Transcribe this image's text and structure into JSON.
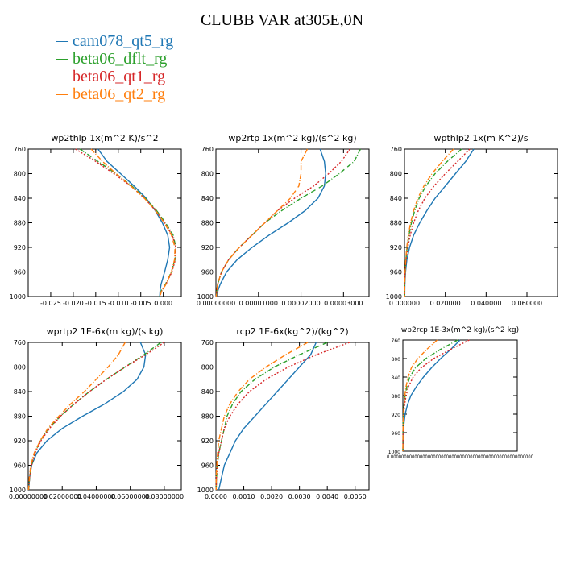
{
  "title": "CLUBB VAR at305E,0N",
  "legend": [
    {
      "label": "cam078_qt5_rg",
      "color": "#1f77b4"
    },
    {
      "label": "beta06_dflt_rg",
      "color": "#2ca02c"
    },
    {
      "label": "beta06_qt1_rg",
      "color": "#d62728"
    },
    {
      "label": "beta06_qt2_rg",
      "color": "#ff7f0e"
    }
  ],
  "chart_data": [
    {
      "type": "line",
      "title": "wp2thlp  1x(m^2 K)/s^2",
      "xlim": [
        -0.03,
        0.004
      ],
      "ylim": [
        760,
        1000
      ],
      "y_inverted": true,
      "yticks": [
        760,
        800,
        840,
        880,
        920,
        960,
        1000
      ],
      "xticks": [
        -0.025,
        -0.02,
        -0.015,
        -0.01,
        -0.005,
        0.0
      ],
      "xtick_labels": [
        "-0.025",
        "-0.020",
        "-0.015",
        "-0.010",
        "-0.005",
        "0.000"
      ],
      "ytick_labels": [
        "760",
        "800",
        "840",
        "880",
        "920",
        "960",
        "1000"
      ],
      "series": [
        {
          "name": "cam078_qt5_rg",
          "y": [
            760,
            780,
            800,
            820,
            840,
            860,
            880,
            900,
            920,
            940,
            960,
            980,
            990,
            1000
          ],
          "x": [
            -0.0145,
            -0.0125,
            -0.0095,
            -0.0065,
            -0.0038,
            -0.0018,
            -0.0002,
            0.001,
            0.0014,
            0.001,
            0.0003,
            -0.0005,
            -0.0007,
            -0.0008
          ]
        },
        {
          "name": "beta06_dflt_rg",
          "y": [
            760,
            780,
            800,
            820,
            840,
            860,
            880,
            900,
            920,
            940,
            960,
            980,
            990,
            1000
          ],
          "x": [
            -0.0185,
            -0.0145,
            -0.0105,
            -0.007,
            -0.004,
            -0.0015,
            0.0005,
            0.0022,
            0.0028,
            0.0026,
            0.0018,
            0.0005,
            -0.0004,
            -0.0008
          ]
        },
        {
          "name": "beta06_qt1_rg",
          "y": [
            760,
            780,
            800,
            820,
            840,
            860,
            880,
            900,
            920,
            940,
            960,
            980,
            990,
            1000
          ],
          "x": [
            -0.0195,
            -0.015,
            -0.011,
            -0.0072,
            -0.0042,
            -0.0017,
            0.0003,
            0.002,
            0.0028,
            0.0027,
            0.0019,
            0.0006,
            -0.0003,
            -0.0008
          ]
        },
        {
          "name": "beta06_qt2_rg",
          "y": [
            760,
            780,
            800,
            820,
            840,
            860,
            880,
            900,
            920,
            940,
            960,
            980,
            990,
            1000
          ],
          "x": [
            -0.016,
            -0.0135,
            -0.0105,
            -0.0072,
            -0.0042,
            -0.0017,
            0.0002,
            0.0018,
            0.0026,
            0.0025,
            0.0018,
            0.0006,
            -0.0003,
            -0.0008
          ]
        }
      ]
    },
    {
      "type": "line",
      "title": "wp2rtp  1x(m^2 kg)/(s^2 kg)",
      "xlim": [
        0,
        3.6e-05
      ],
      "ylim": [
        760,
        1000
      ],
      "y_inverted": true,
      "yticks": [
        760,
        800,
        840,
        880,
        920,
        960,
        1000
      ],
      "xticks": [
        0,
        1e-05,
        2e-05,
        3e-05
      ],
      "xtick_labels": [
        "0.00000000",
        "0.00001000",
        "0.00002000",
        "0.00003000"
      ],
      "ytick_labels": [
        "760",
        "800",
        "840",
        "880",
        "920",
        "960",
        "1000"
      ],
      "series": [
        {
          "name": "cam078_qt5_rg",
          "y": [
            760,
            780,
            800,
            820,
            840,
            860,
            880,
            900,
            920,
            940,
            960,
            980,
            990,
            1000
          ],
          "x": [
            2.45e-05,
            2.55e-05,
            2.58e-05,
            2.55e-05,
            2.4e-05,
            2.1e-05,
            1.7e-05,
            1.25e-05,
            8.5e-06,
            5e-06,
            2.5e-06,
            1e-06,
            5e-07,
            2e-07
          ]
        },
        {
          "name": "beta06_dflt_rg",
          "y": [
            760,
            780,
            800,
            820,
            840,
            860,
            880,
            900,
            920,
            940,
            960,
            980,
            990,
            1000
          ],
          "x": [
            3.4e-05,
            3.25e-05,
            2.9e-05,
            2.5e-05,
            2e-05,
            1.55e-05,
            1.15e-05,
            8.5e-06,
            5.5e-06,
            3e-06,
            1.3e-06,
            4e-07,
            2e-07,
            1e-07
          ]
        },
        {
          "name": "beta06_qt1_rg",
          "y": [
            760,
            780,
            800,
            820,
            840,
            860,
            880,
            900,
            920,
            940,
            960,
            980,
            990,
            1000
          ],
          "x": [
            3.15e-05,
            2.95e-05,
            2.65e-05,
            2.3e-05,
            1.85e-05,
            1.45e-05,
            1.15e-05,
            8.5e-06,
            5.5e-06,
            3e-06,
            1.3e-06,
            4e-07,
            2e-07,
            1e-07
          ]
        },
        {
          "name": "beta06_qt2_rg",
          "y": [
            760,
            780,
            800,
            820,
            840,
            860,
            880,
            900,
            920,
            940,
            960,
            980,
            990,
            1000
          ],
          "x": [
            2.15e-05,
            2e-05,
            2e-05,
            1.95e-05,
            1.75e-05,
            1.45e-05,
            1.15e-05,
            8.5e-06,
            5.5e-06,
            3e-06,
            1.3e-06,
            4e-07,
            2e-07,
            1e-07
          ]
        }
      ]
    },
    {
      "type": "line",
      "title": "wpthlp2  1x(m K^2)/s",
      "xlim": [
        0,
        0.075
      ],
      "ylim": [
        760,
        1000
      ],
      "y_inverted": true,
      "yticks": [
        760,
        800,
        840,
        880,
        920,
        960,
        1000
      ],
      "xticks": [
        0,
        0.02,
        0.04,
        0.06
      ],
      "xtick_labels": [
        "0.000000",
        "0.020000",
        "0.040000",
        "0.060000"
      ],
      "ytick_labels": [
        "760",
        "800",
        "840",
        "880",
        "920",
        "960",
        "1000"
      ],
      "series": [
        {
          "name": "cam078_qt5_rg",
          "y": [
            760,
            780,
            800,
            820,
            840,
            860,
            880,
            900,
            920,
            940,
            960,
            980,
            1000
          ],
          "x": [
            0.034,
            0.03,
            0.025,
            0.02,
            0.015,
            0.011,
            0.0075,
            0.0045,
            0.0025,
            0.0012,
            0.0005,
            0.0002,
            0.0001
          ]
        },
        {
          "name": "beta06_dflt_rg",
          "y": [
            760,
            780,
            800,
            820,
            840,
            860,
            880,
            900,
            920,
            940,
            960,
            980,
            1000
          ],
          "x": [
            0.028,
            0.021,
            0.015,
            0.0105,
            0.0072,
            0.005,
            0.0034,
            0.0022,
            0.0013,
            0.0007,
            0.0003,
            0.0001,
            0.0001
          ]
        },
        {
          "name": "beta06_qt1_rg",
          "y": [
            760,
            780,
            800,
            820,
            840,
            860,
            880,
            900,
            920,
            940,
            960,
            980,
            1000
          ],
          "x": [
            0.032,
            0.026,
            0.02,
            0.0145,
            0.01,
            0.0068,
            0.0045,
            0.0028,
            0.0016,
            0.0008,
            0.0003,
            0.0001,
            0.0001
          ]
        },
        {
          "name": "beta06_qt2_rg",
          "y": [
            760,
            780,
            800,
            820,
            840,
            860,
            880,
            900,
            920,
            940,
            960,
            980,
            1000
          ],
          "x": [
            0.024,
            0.0185,
            0.0135,
            0.0095,
            0.0065,
            0.0045,
            0.003,
            0.0019,
            0.0011,
            0.0006,
            0.0003,
            0.0001,
            0.0001
          ]
        }
      ]
    },
    {
      "type": "line",
      "title": "wprtp2  1E-6x(m kg)/(s kg)",
      "xlim": [
        0,
        0.09
      ],
      "ylim": [
        760,
        1000
      ],
      "y_inverted": true,
      "yticks": [
        760,
        800,
        840,
        880,
        920,
        960,
        1000
      ],
      "xticks": [
        0,
        0.02,
        0.04,
        0.06,
        0.08
      ],
      "xtick_labels": [
        "0.00000000",
        "0.02000000",
        "0.04000000",
        "0.06000000",
        "0.08000000"
      ],
      "ytick_labels": [
        "760",
        "800",
        "840",
        "880",
        "920",
        "960",
        "1000"
      ],
      "series": [
        {
          "name": "cam078_qt5_rg",
          "y": [
            760,
            780,
            800,
            820,
            840,
            860,
            880,
            900,
            920,
            940,
            960,
            980,
            1000
          ],
          "x": [
            0.066,
            0.069,
            0.068,
            0.064,
            0.056,
            0.045,
            0.032,
            0.02,
            0.011,
            0.005,
            0.002,
            0.0008,
            0.0003
          ]
        },
        {
          "name": "beta06_dflt_rg",
          "y": [
            760,
            780,
            800,
            820,
            840,
            860,
            880,
            900,
            920,
            940,
            960,
            980,
            1000
          ],
          "x": [
            0.078,
            0.068,
            0.057,
            0.046,
            0.036,
            0.027,
            0.019,
            0.012,
            0.007,
            0.004,
            0.002,
            0.0008,
            0.0003
          ]
        },
        {
          "name": "beta06_qt1_rg",
          "y": [
            760,
            780,
            800,
            820,
            840,
            860,
            880,
            900,
            920,
            940,
            960,
            980,
            1000
          ],
          "x": [
            0.08,
            0.069,
            0.057,
            0.046,
            0.036,
            0.027,
            0.019,
            0.0125,
            0.0075,
            0.004,
            0.002,
            0.0008,
            0.0003
          ]
        },
        {
          "name": "beta06_qt2_rg",
          "y": [
            760,
            780,
            800,
            820,
            840,
            860,
            880,
            900,
            920,
            940,
            960,
            980,
            1000
          ],
          "x": [
            0.057,
            0.053,
            0.047,
            0.04,
            0.033,
            0.025,
            0.018,
            0.0115,
            0.007,
            0.0035,
            0.0015,
            0.0006,
            0.0002
          ]
        }
      ]
    },
    {
      "type": "line",
      "title": "rcp2  1E-6x(kg^2)/(kg^2)",
      "xlim": [
        0,
        0.0055
      ],
      "ylim": [
        760,
        1000
      ],
      "y_inverted": true,
      "yticks": [
        760,
        800,
        840,
        880,
        920,
        960,
        1000
      ],
      "xticks": [
        0,
        0.001,
        0.002,
        0.003,
        0.004,
        0.005
      ],
      "xtick_labels": [
        "0.0000",
        "0.0010",
        "0.0020",
        "0.0030",
        "0.0040",
        "0.0050"
      ],
      "ytick_labels": [
        "760",
        "800",
        "840",
        "880",
        "920",
        "960",
        "1000"
      ],
      "series": [
        {
          "name": "cam078_qt5_rg",
          "y": [
            760,
            780,
            800,
            820,
            840,
            860,
            880,
            900,
            920,
            940,
            960,
            980,
            1000
          ],
          "x": [
            0.0036,
            0.0034,
            0.003,
            0.0026,
            0.0022,
            0.0018,
            0.0014,
            0.001,
            0.0007,
            0.0005,
            0.0003,
            0.0002,
            0.0001
          ]
        },
        {
          "name": "beta06_dflt_rg",
          "y": [
            760,
            780,
            800,
            820,
            840,
            860,
            880,
            900,
            920,
            940,
            960,
            980,
            1000
          ],
          "x": [
            0.004,
            0.003,
            0.0021,
            0.0014,
            0.0009,
            0.0006,
            0.0004,
            0.0003,
            0.0002,
            0.0001,
            5e-05,
            2e-05,
            1e-05
          ]
        },
        {
          "name": "beta06_qt1_rg",
          "y": [
            760,
            780,
            800,
            820,
            840,
            860,
            880,
            900,
            920,
            940,
            960,
            980,
            1000
          ],
          "x": [
            0.0048,
            0.0036,
            0.0026,
            0.0018,
            0.0012,
            0.0008,
            0.0005,
            0.0003,
            0.0002,
            0.0001,
            5e-05,
            2e-05,
            1e-05
          ]
        },
        {
          "name": "beta06_qt2_rg",
          "y": [
            760,
            780,
            800,
            820,
            840,
            860,
            880,
            900,
            920,
            940,
            960,
            980,
            1000
          ],
          "x": [
            0.0033,
            0.0025,
            0.0018,
            0.0012,
            0.0008,
            0.0005,
            0.0003,
            0.0002,
            0.0001,
            6e-05,
            3e-05,
            1e-05,
            1e-05
          ]
        }
      ]
    },
    {
      "type": "line",
      "title": "wp2rcp  1E-3x(m^2 kg)/(s^2 kg)",
      "xlim": [
        0,
        1
      ],
      "ylim": [
        760,
        1000
      ],
      "y_inverted": true,
      "yticks": [
        760,
        800,
        840,
        880,
        920,
        960,
        1000
      ],
      "ytick_labels": [
        "760",
        "800",
        "840",
        "880",
        "920",
        "960",
        "1000"
      ],
      "xtick_labels_overlapping": "0.000000000000000000000000000000000000000000000000000000",
      "series": [
        {
          "name": "cam078_qt5_rg",
          "y": [
            760,
            780,
            800,
            820,
            840,
            860,
            880,
            900,
            920,
            940,
            960,
            980,
            1000
          ],
          "x": [
            0.5,
            0.42,
            0.33,
            0.25,
            0.18,
            0.12,
            0.07,
            0.04,
            0.02,
            0.01,
            0.005,
            0.002,
            0.001
          ]
        },
        {
          "name": "beta06_dflt_rg",
          "y": [
            760,
            780,
            800,
            820,
            840,
            860,
            880,
            900,
            920,
            940,
            960,
            980,
            1000
          ],
          "x": [
            0.48,
            0.33,
            0.2,
            0.11,
            0.06,
            0.035,
            0.02,
            0.01,
            0.005,
            0.002,
            0.001,
            0.0005,
            0.0002
          ]
        },
        {
          "name": "beta06_qt1_rg",
          "y": [
            760,
            780,
            800,
            820,
            840,
            860,
            880,
            900,
            920,
            940,
            960,
            980,
            1000
          ],
          "x": [
            0.58,
            0.42,
            0.27,
            0.16,
            0.09,
            0.05,
            0.028,
            0.015,
            0.008,
            0.004,
            0.002,
            0.001,
            0.0005
          ]
        },
        {
          "name": "beta06_qt2_rg",
          "y": [
            760,
            780,
            800,
            820,
            840,
            860,
            880,
            900,
            920,
            940,
            960,
            980,
            1000
          ],
          "x": [
            0.3,
            0.21,
            0.13,
            0.075,
            0.045,
            0.028,
            0.017,
            0.01,
            0.005,
            0.002,
            0.001,
            0.0005,
            0.0002
          ]
        }
      ]
    }
  ]
}
